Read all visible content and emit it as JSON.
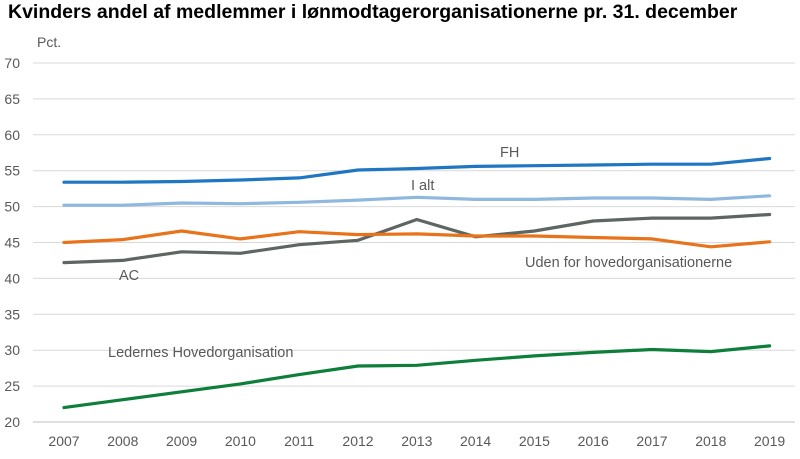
{
  "chart_data": {
    "type": "line",
    "title": "Kvinders andel af medlemmer i lønmodtagerorganisationerne pr. 31. december",
    "ylabel": "Pct.",
    "xlabel": "",
    "categories": [
      "2007",
      "2008",
      "2009",
      "2010",
      "2011",
      "2012",
      "2013",
      "2014",
      "2015",
      "2016",
      "2017",
      "2018",
      "2019"
    ],
    "ylim": [
      20,
      70
    ],
    "yticks": [
      20,
      25,
      30,
      35,
      40,
      45,
      50,
      55,
      60,
      65,
      70
    ],
    "grid": true,
    "series": [
      {
        "name": "FH",
        "color": "#1f77c4",
        "values": [
          53.4,
          53.4,
          53.5,
          53.7,
          54.0,
          55.1,
          55.3,
          55.6,
          55.7,
          55.8,
          55.9,
          55.9,
          56.7
        ]
      },
      {
        "name": "I alt",
        "color": "#8fb8de",
        "values": [
          50.2,
          50.2,
          50.5,
          50.4,
          50.6,
          50.9,
          51.3,
          51.0,
          51.0,
          51.2,
          51.2,
          51.0,
          51.5
        ]
      },
      {
        "name": "AC",
        "color": "#5d6661",
        "values": [
          42.2,
          42.5,
          43.7,
          43.5,
          44.7,
          45.3,
          48.2,
          45.8,
          46.6,
          48.0,
          48.4,
          48.4,
          48.9
        ]
      },
      {
        "name": "Uden for hovedorganisationerne",
        "color": "#e8731a",
        "values": [
          45.0,
          45.4,
          46.6,
          45.5,
          46.5,
          46.1,
          46.2,
          45.9,
          45.9,
          45.7,
          45.5,
          44.4,
          45.1
        ]
      },
      {
        "name": "Ledernes Hovedorganisation",
        "color": "#0e7f3a",
        "values": [
          22.0,
          23.1,
          24.2,
          25.3,
          26.6,
          27.8,
          27.9,
          28.6,
          29.2,
          29.7,
          30.1,
          29.8,
          30.6
        ]
      }
    ]
  }
}
